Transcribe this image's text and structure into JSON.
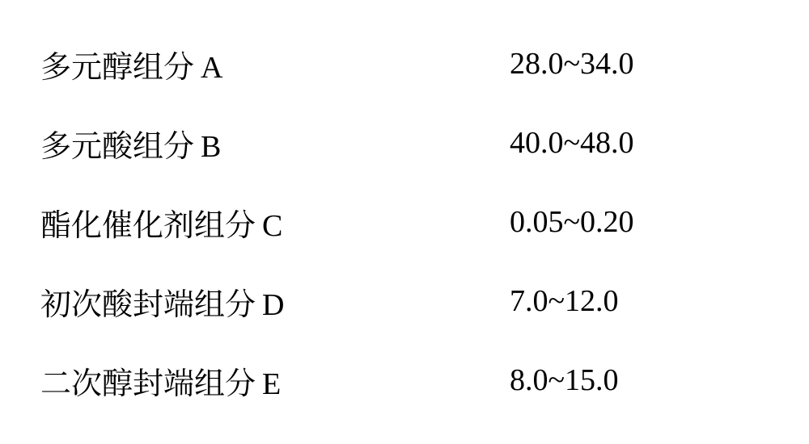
{
  "table": {
    "font_size_pt": 38,
    "text_color": "#000000",
    "background_color": "#ffffff",
    "label_font_family": "SimSun, serif",
    "value_font_family": "Times New Roman, serif",
    "rows": [
      {
        "label": "多元醇组分",
        "suffix": "A",
        "value": "28.0~34.0"
      },
      {
        "label": "多元酸组分",
        "suffix": "B",
        "value": "40.0~48.0"
      },
      {
        "label": "酯化催化剂组分",
        "suffix": "C",
        "value": "0.05~0.20"
      },
      {
        "label": "初次酸封端组分",
        "suffix": "D",
        "value": "7.0~12.0"
      },
      {
        "label": "二次醇封端组分",
        "suffix": "E",
        "value": "8.0~15.0"
      }
    ]
  }
}
